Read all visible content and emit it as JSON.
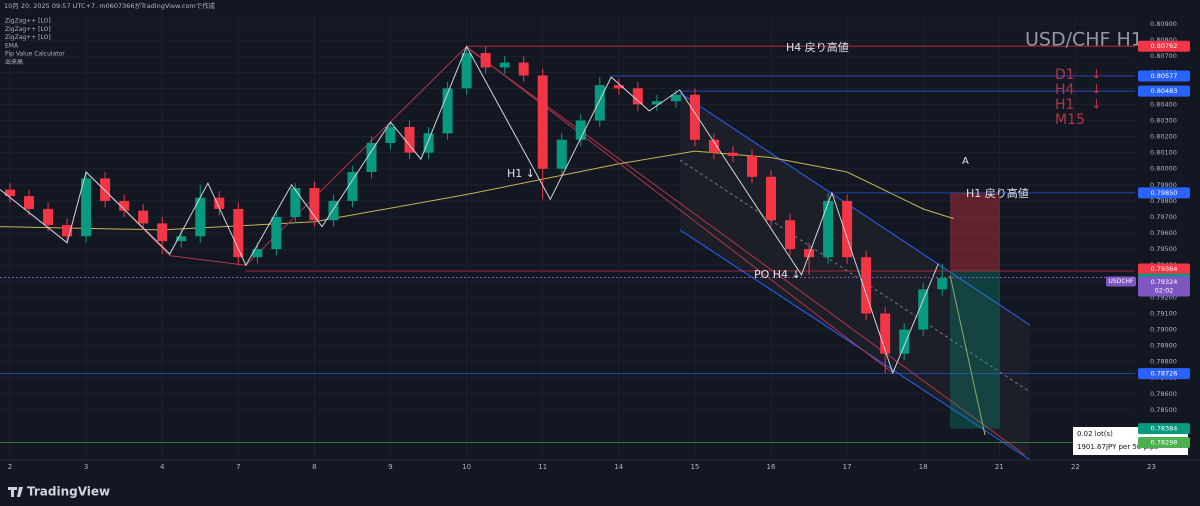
{
  "chart_data": {
    "type": "candlestick",
    "title": "USD/CHF H1",
    "header": "10月 20, 2025 09:57 UTC+7.  m0607366がTradingView.comで作成",
    "indicators": [
      "ZigZag++ [LO]",
      "ZigZag++ [LO]",
      "ZigZag++ [LO]",
      "EMA",
      "Pip Value Calculator",
      "出来高"
    ],
    "xlim": [
      -0.1314,
      15.637
    ],
    "ylim": [
      0.78189,
      0.80956
    ],
    "xticks": [
      {
        "value": 0,
        "label": "2"
      },
      {
        "value": 1,
        "label": "3"
      },
      {
        "value": 2,
        "label": "4"
      },
      {
        "value": 3,
        "label": "7"
      },
      {
        "value": 4,
        "label": "8"
      },
      {
        "value": 5,
        "label": "9"
      },
      {
        "value": 6,
        "label": "10"
      },
      {
        "value": 7,
        "label": "11"
      },
      {
        "value": 8,
        "label": "14"
      },
      {
        "value": 9,
        "label": "15"
      },
      {
        "value": 10,
        "label": "16"
      },
      {
        "value": 11,
        "label": "17"
      },
      {
        "value": 12,
        "label": "18"
      },
      {
        "value": 13,
        "label": "21"
      },
      {
        "value": 14,
        "label": "22"
      },
      {
        "value": 15,
        "label": "23"
      }
    ],
    "yticks": [
      {
        "value": 0.809,
        "label": "0.80900"
      },
      {
        "value": 0.808,
        "label": "0.80800"
      },
      {
        "value": 0.807,
        "label": "0.80700"
      },
      {
        "value": 0.806,
        "label": "0.80600"
      },
      {
        "value": 0.805,
        "label": "0.80500"
      },
      {
        "value": 0.804,
        "label": "0.80400"
      },
      {
        "value": 0.803,
        "label": "0.80300"
      },
      {
        "value": 0.802,
        "label": "0.80200"
      },
      {
        "value": 0.801,
        "label": "0.80100"
      },
      {
        "value": 0.8,
        "label": "0.80000"
      },
      {
        "value": 0.799,
        "label": "0.79900"
      },
      {
        "value": 0.798,
        "label": "0.79800"
      },
      {
        "value": 0.797,
        "label": "0.79700"
      },
      {
        "value": 0.796,
        "label": "0.79600"
      },
      {
        "value": 0.795,
        "label": "0.79500"
      },
      {
        "value": 0.794,
        "label": "0.79400"
      },
      {
        "value": 0.793,
        "label": "0.79300"
      },
      {
        "value": 0.792,
        "label": "0.79200"
      },
      {
        "value": 0.791,
        "label": "0.79100"
      },
      {
        "value": 0.79,
        "label": "0.79000"
      },
      {
        "value": 0.789,
        "label": "0.78900"
      },
      {
        "value": 0.788,
        "label": "0.78800"
      },
      {
        "value": 0.787,
        "label": "0.78700"
      },
      {
        "value": 0.786,
        "label": "0.78600"
      },
      {
        "value": 0.785,
        "label": "0.78500"
      }
    ],
    "grid": true,
    "candles": {
      "up_color": "#089981",
      "down_color": "#f23645",
      "x": [
        0,
        0.25,
        0.5,
        0.75,
        1,
        1.25,
        1.5,
        1.75,
        2,
        2.25,
        2.5,
        2.75,
        3,
        3.25,
        3.5,
        3.75,
        4,
        4.25,
        4.5,
        4.75,
        5,
        5.25,
        5.5,
        5.75,
        6,
        6.25,
        6.5,
        6.75,
        7,
        7.25,
        7.5,
        7.75,
        8,
        8.25,
        8.5,
        8.75,
        9,
        9.25,
        9.5,
        9.75,
        10,
        10.25,
        10.5,
        10.75,
        11,
        11.25,
        11.5,
        11.75,
        12,
        12.25
      ],
      "open": [
        0.7987,
        0.7983,
        0.7975,
        0.7965,
        0.7958,
        0.7994,
        0.798,
        0.7974,
        0.7966,
        0.7955,
        0.7958,
        0.7982,
        0.7975,
        0.7945,
        0.795,
        0.797,
        0.7988,
        0.7968,
        0.798,
        0.7998,
        0.8016,
        0.8026,
        0.801,
        0.8022,
        0.805,
        0.8072,
        0.8063,
        0.8066,
        0.8058,
        0.8,
        0.8018,
        0.803,
        0.8052,
        0.805,
        0.804,
        0.8042,
        0.8046,
        0.8018,
        0.801,
        0.8008,
        0.7995,
        0.7968,
        0.795,
        0.7945,
        0.798,
        0.7945,
        0.791,
        0.7885,
        0.79,
        0.7925
      ],
      "high": [
        0.7991,
        0.7987,
        0.7979,
        0.7969,
        0.7998,
        0.7998,
        0.7984,
        0.7978,
        0.797,
        0.7962,
        0.799,
        0.7986,
        0.7979,
        0.7954,
        0.7974,
        0.7991,
        0.7992,
        0.7984,
        0.8002,
        0.802,
        0.8029,
        0.803,
        0.8026,
        0.8054,
        0.8076,
        0.8076,
        0.807,
        0.807,
        0.8062,
        0.8022,
        0.8034,
        0.8057,
        0.8056,
        0.8054,
        0.8046,
        0.8049,
        0.805,
        0.8022,
        0.8014,
        0.8012,
        0.7999,
        0.7972,
        0.7954,
        0.7985,
        0.7984,
        0.7949,
        0.7914,
        0.7904,
        0.7929,
        0.7941
      ],
      "low": [
        0.7979,
        0.7971,
        0.7961,
        0.7954,
        0.7954,
        0.7976,
        0.797,
        0.7962,
        0.7947,
        0.7951,
        0.7954,
        0.7971,
        0.794,
        0.7941,
        0.7946,
        0.7966,
        0.7964,
        0.7964,
        0.7976,
        0.7994,
        0.8012,
        0.8006,
        0.8006,
        0.8018,
        0.8046,
        0.8059,
        0.8059,
        0.8054,
        0.7981,
        0.7996,
        0.8014,
        0.8026,
        0.8046,
        0.8036,
        0.8036,
        0.8038,
        0.8014,
        0.8006,
        0.8004,
        0.7991,
        0.7964,
        0.7946,
        0.7934,
        0.7941,
        0.7941,
        0.7906,
        0.7873,
        0.7881,
        0.7896,
        0.7921
      ],
      "close": [
        0.7983,
        0.7975,
        0.7965,
        0.7958,
        0.7994,
        0.798,
        0.7974,
        0.7966,
        0.7955,
        0.7958,
        0.7982,
        0.7975,
        0.7945,
        0.795,
        0.797,
        0.7988,
        0.7968,
        0.798,
        0.7998,
        0.8016,
        0.8026,
        0.801,
        0.8022,
        0.805,
        0.8072,
        0.8063,
        0.8066,
        0.8058,
        0.8,
        0.8018,
        0.803,
        0.8052,
        0.805,
        0.804,
        0.8042,
        0.8046,
        0.8018,
        0.801,
        0.8008,
        0.7995,
        0.7968,
        0.795,
        0.7945,
        0.798,
        0.7945,
        0.791,
        0.7885,
        0.79,
        0.7925,
        0.7932
      ]
    },
    "ema": {
      "color": "#c9b458",
      "x": [
        -0.13,
        2,
        4,
        6,
        8,
        9,
        10,
        11,
        12,
        12.4
      ],
      "values": [
        0.7964,
        0.7962,
        0.7967,
        0.7984,
        0.8003,
        0.8011,
        0.8007,
        0.7998,
        0.7975,
        0.7969
      ]
    },
    "zigzag": {
      "color": "#d1d4dc",
      "x": [
        -0.13,
        0.75,
        1,
        2.1,
        2.6,
        3.1,
        3.7,
        4.1,
        5,
        5.4,
        6,
        7.1,
        7.9,
        8.4,
        8.8,
        10.4,
        10.8,
        11.6,
        12.2
      ],
      "values": [
        0.7987,
        0.7954,
        0.7998,
        0.7947,
        0.7991,
        0.794,
        0.799,
        0.7964,
        0.8029,
        0.8006,
        0.8076,
        0.7981,
        0.8057,
        0.8036,
        0.8049,
        0.7934,
        0.7985,
        0.7873,
        0.7941
      ]
    },
    "zigzag_htf": {
      "color": "#b2364a",
      "x": [
        1,
        2.1,
        3.1,
        6,
        11.6
      ],
      "values": [
        0.7998,
        0.7946,
        0.794,
        0.8076,
        0.7873
      ]
    },
    "levels": [
      {
        "value": 0.80762,
        "label": "0.80762",
        "color": "#f23645"
      },
      {
        "value": 0.80577,
        "label": "0.80577",
        "color": "#2962ff"
      },
      {
        "value": 0.80483,
        "label": "0.80483",
        "color": "#2962ff"
      },
      {
        "value": 0.7985,
        "label": "0.79850",
        "color": "#2962ff"
      },
      {
        "value": 0.79364,
        "label": "0.79364",
        "color": "#f23645"
      },
      {
        "value": 0.7935,
        "label": "0.79350",
        "color": "#089981"
      },
      {
        "value": 0.78726,
        "label": "0.78726",
        "color": "#2962ff"
      },
      {
        "value": 0.78384,
        "label": "0.78384",
        "color": "#089981"
      },
      {
        "value": 0.78298,
        "label": "0.78298",
        "color": "#4caf50"
      }
    ],
    "current": {
      "value": 0.79324,
      "label": "0.79324",
      "symbol": "USDCHF",
      "countdown": "02:02",
      "color": "#7e57c2"
    },
    "annotations": [
      "H4 戻り高値",
      "H1 ↓",
      "PO H4 ↓",
      "H1 戻り高値",
      "A"
    ],
    "timeframes": [
      "D1",
      "H4",
      "H1",
      "M15"
    ],
    "arrows": [
      "↓",
      "↓",
      "↓"
    ],
    "calculator": [
      "0.02 lot(s)",
      "1901.67JPY per 50 pips"
    ],
    "brand": "TradingView"
  }
}
